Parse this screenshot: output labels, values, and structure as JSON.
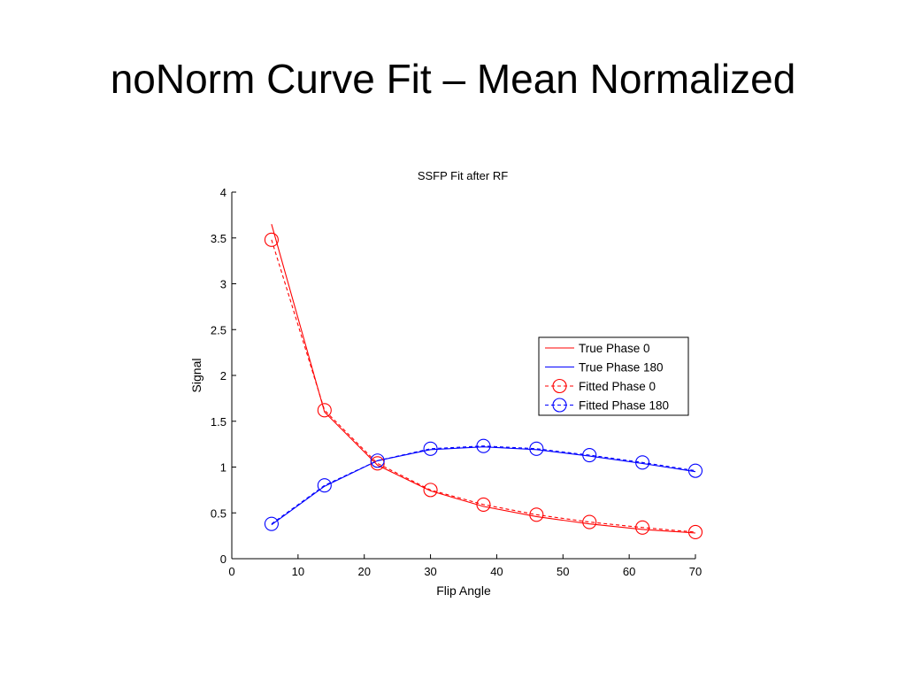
{
  "slide": {
    "title": "noNorm Curve Fit – Mean Normalized"
  },
  "chart_data": {
    "type": "line",
    "title": "SSFP Fit after RF",
    "xlabel": "Flip Angle",
    "ylabel": "Signal",
    "xlim": [
      0,
      70
    ],
    "ylim": [
      0,
      4
    ],
    "xticks": [
      "0",
      "10",
      "20",
      "30",
      "40",
      "50",
      "60",
      "70"
    ],
    "yticks": [
      "0",
      "0.5",
      "1",
      "1.5",
      "2",
      "2.5",
      "3",
      "3.5",
      "4"
    ],
    "grid": false,
    "legend_position": "right",
    "series": [
      {
        "name": "True Phase 0",
        "color": "#ff0000",
        "style": "solid",
        "marker": "none",
        "x": [
          6,
          14,
          22,
          30,
          38,
          46,
          54,
          62,
          70
        ],
        "y": [
          3.65,
          1.6,
          1.02,
          0.74,
          0.57,
          0.46,
          0.38,
          0.32,
          0.28
        ]
      },
      {
        "name": "True Phase 180",
        "color": "#0000ff",
        "style": "solid",
        "marker": "none",
        "x": [
          6,
          14,
          22,
          30,
          38,
          46,
          54,
          62,
          70
        ],
        "y": [
          0.37,
          0.79,
          1.07,
          1.19,
          1.22,
          1.19,
          1.12,
          1.04,
          0.95
        ]
      },
      {
        "name": "Fitted Phase 0",
        "color": "#ff0000",
        "style": "dashed",
        "marker": "circle",
        "x": [
          6,
          14,
          22,
          30,
          38,
          46,
          54,
          62,
          70
        ],
        "y": [
          3.48,
          1.62,
          1.04,
          0.75,
          0.59,
          0.48,
          0.4,
          0.34,
          0.29
        ]
      },
      {
        "name": "Fitted Phase 180",
        "color": "#0000ff",
        "style": "dashed",
        "marker": "circle",
        "x": [
          6,
          14,
          22,
          30,
          38,
          46,
          54,
          62,
          70
        ],
        "y": [
          0.38,
          0.8,
          1.07,
          1.2,
          1.23,
          1.2,
          1.13,
          1.05,
          0.96
        ]
      }
    ]
  }
}
